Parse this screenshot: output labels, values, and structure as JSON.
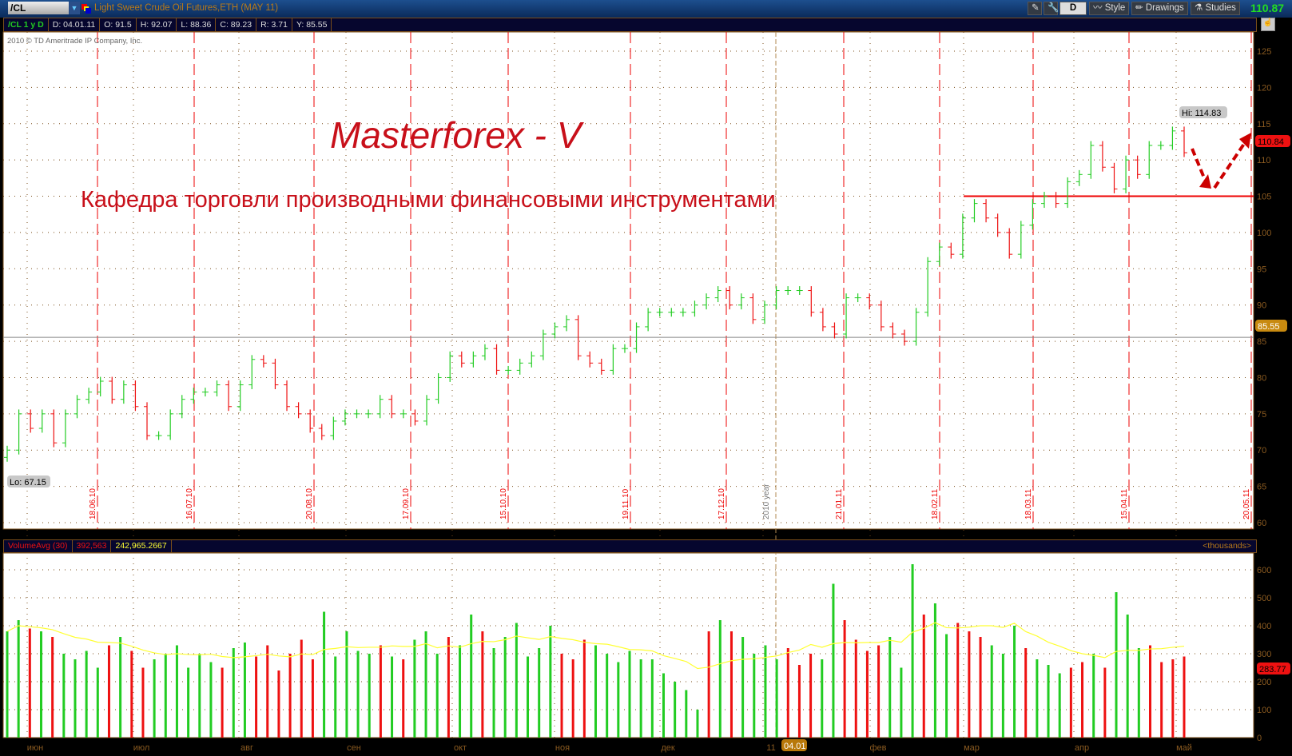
{
  "topbar": {
    "symbol": "/CL",
    "title": "Light Sweet Crude Oil Futures,ETH (MAY 11)",
    "buttons": {
      "period": "D",
      "style": "Style",
      "drawings": "Drawings",
      "studies": "Studies"
    },
    "last_price": "110.87"
  },
  "info": {
    "label": "/CL 1 y D",
    "date": "D: 04.01.11",
    "open": "O: 91.5",
    "high": "H: 92.07",
    "low": "L: 88.36",
    "close": "C: 89.23",
    "range": "R: 3.71",
    "y": "Y: 85.55"
  },
  "copyright": "2010 © TD Ameritrade IP Company, Inc.",
  "overlay": {
    "title": "Masterforex - V",
    "subtitle": "Кафедра торговли производными финансовыми инструментами"
  },
  "volume_header": {
    "study": "VolumeAvg (30)",
    "volume": "392,563",
    "avg": "242,965.2667",
    "units": "<thousands>"
  },
  "colors": {
    "up": "#22cc22",
    "down": "#ee1111",
    "avg": "#ffff33",
    "marker": "#cc0000",
    "grid": "#7a4e1a"
  },
  "chart_data": [
    {
      "type": "bar",
      "name": "price",
      "ylim": [
        60,
        127
      ],
      "yticks": [
        60,
        65,
        70,
        75,
        80,
        85,
        90,
        95,
        100,
        105,
        110,
        115,
        120,
        125
      ],
      "closes": [
        70,
        75,
        73,
        75,
        71,
        75,
        77,
        78,
        79.5,
        77,
        79,
        76,
        72,
        72,
        75,
        77,
        78,
        78,
        79,
        76,
        79,
        82.5,
        82,
        79,
        76,
        75,
        73,
        72,
        74,
        75,
        75,
        75,
        77,
        75,
        75,
        74,
        77,
        80,
        83,
        82,
        83,
        84,
        81,
        81,
        82,
        83,
        86,
        87,
        88,
        83,
        82,
        81,
        84,
        84,
        87,
        89,
        89,
        89,
        89,
        90,
        91,
        92,
        90,
        91,
        88,
        90,
        92,
        92,
        92,
        89,
        87,
        86,
        91,
        91,
        90,
        87,
        86,
        85,
        89,
        96,
        98,
        97,
        102,
        104,
        102,
        100,
        97,
        101,
        104,
        105,
        104,
        107,
        108,
        112,
        109,
        106,
        110,
        108,
        112,
        112,
        114,
        111
      ],
      "hi": "Hi: 114.83",
      "lo": "Lo: 67.15",
      "current_label": "110.84",
      "prev_close_label": "85.55",
      "prev_close": 85.55,
      "support_level": 105,
      "date_markers": [
        "18.06.10",
        "16.07.10",
        "20.08.10",
        "17.09.10",
        "15.10.10",
        "19.11.10",
        "17.12.10",
        "21.01.11",
        "18.02.11",
        "18.03.11",
        "15.04.11",
        "20.05.11"
      ],
      "year_marker": "2010 year"
    },
    {
      "type": "bar",
      "name": "volume",
      "ylim": [
        0,
        650
      ],
      "yticks": [
        0,
        100,
        200,
        300,
        400,
        500,
        600
      ],
      "values": [
        380,
        420,
        390,
        380,
        360,
        300,
        280,
        310,
        250,
        330,
        360,
        310,
        250,
        280,
        300,
        330,
        250,
        300,
        270,
        250,
        320,
        340,
        290,
        330,
        240,
        300,
        350,
        280,
        450,
        290,
        380,
        310,
        300,
        330,
        290,
        280,
        350,
        380,
        300,
        360,
        330,
        440,
        380,
        320,
        360,
        410,
        290,
        320,
        400,
        300,
        280,
        350,
        330,
        300,
        270,
        310,
        280,
        280,
        230,
        200,
        170,
        100,
        380,
        420,
        380,
        360,
        300,
        330,
        280,
        320,
        260,
        300,
        280,
        550,
        420,
        350,
        310,
        330,
        360,
        250,
        620,
        440,
        480,
        370,
        410,
        380,
        360,
        330,
        300,
        400,
        320,
        280,
        260,
        230,
        250,
        270,
        300,
        250,
        520,
        440,
        320,
        330,
        270,
        280,
        290
      ],
      "current_label": "283.77",
      "months": [
        "июн",
        "июл",
        "авг",
        "сен",
        "окт",
        "ноя",
        "дек",
        "11",
        "фев",
        "мар",
        "апр",
        "май"
      ],
      "crosshair_label": "04.01"
    }
  ]
}
